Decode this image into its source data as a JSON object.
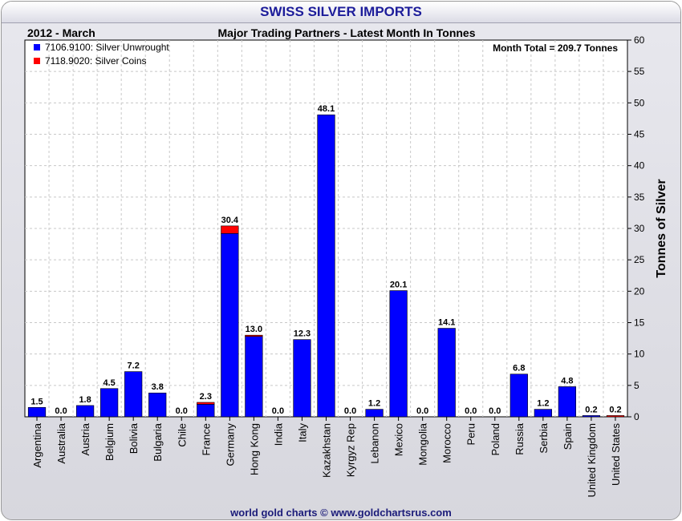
{
  "header": {
    "title": "SWISS SILVER IMPORTS",
    "period": "2012 - March",
    "subtitle": "Major Trading Partners - Latest Month In Tonnes",
    "month_total": "Month Total = 209.7 Tonnes"
  },
  "footer": {
    "credit": "world gold charts © www.goldchartsrus.com"
  },
  "chart_data": {
    "type": "bar",
    "stacked": true,
    "title": "SWISS SILVER IMPORTS",
    "ylabel": "Tonnes of Silver",
    "ylim": [
      0,
      60
    ],
    "yticks": [
      0,
      5,
      10,
      15,
      20,
      25,
      30,
      35,
      40,
      45,
      50,
      55,
      60
    ],
    "y_axis_side": "right",
    "grid": true,
    "legend_position": "top-left",
    "categories": [
      "Argentina",
      "Australia",
      "Austria",
      "Belgium",
      "Bolivia",
      "Bulgaria",
      "Chile",
      "France",
      "Germany",
      "Hong Kong",
      "India",
      "Italy",
      "Kazakhstan",
      "Kyrgyz Rep",
      "Lebanon",
      "Mexico",
      "Mongolia",
      "Morocco",
      "Peru",
      "Poland",
      "Russia",
      "Serbia",
      "Spain",
      "United Kingdom",
      "United States"
    ],
    "series": [
      {
        "name": "7106.9100: Silver Unwrought",
        "color": "#0000ff",
        "values": [
          1.5,
          0.0,
          1.8,
          4.5,
          7.2,
          3.8,
          0.0,
          2.0,
          29.2,
          12.8,
          0.0,
          12.3,
          48.1,
          0.0,
          1.2,
          20.1,
          0.0,
          14.1,
          0.0,
          0.0,
          6.8,
          1.2,
          4.8,
          0.2,
          0.0
        ]
      },
      {
        "name": "7118.9020: Silver Coins",
        "color": "#ff0000",
        "values": [
          0.0,
          0.0,
          0.0,
          0.0,
          0.0,
          0.0,
          0.0,
          0.3,
          1.2,
          0.2,
          0.0,
          0.0,
          0.0,
          0.0,
          0.0,
          0.0,
          0.0,
          0.0,
          0.0,
          0.0,
          0.0,
          0.0,
          0.0,
          0.0,
          0.2
        ]
      }
    ],
    "totals_labels": [
      "1.5",
      "0.0",
      "1.8",
      "4.5",
      "7.2",
      "3.8",
      "0.0",
      "2.3",
      "30.4",
      "13.0",
      "0.0",
      "12.3",
      "48.1",
      "0.0",
      "1.2",
      "20.1",
      "0.0",
      "14.1",
      "0.0",
      "0.0",
      "6.8",
      "1.2",
      "4.8",
      "0.2",
      "0.2"
    ]
  }
}
